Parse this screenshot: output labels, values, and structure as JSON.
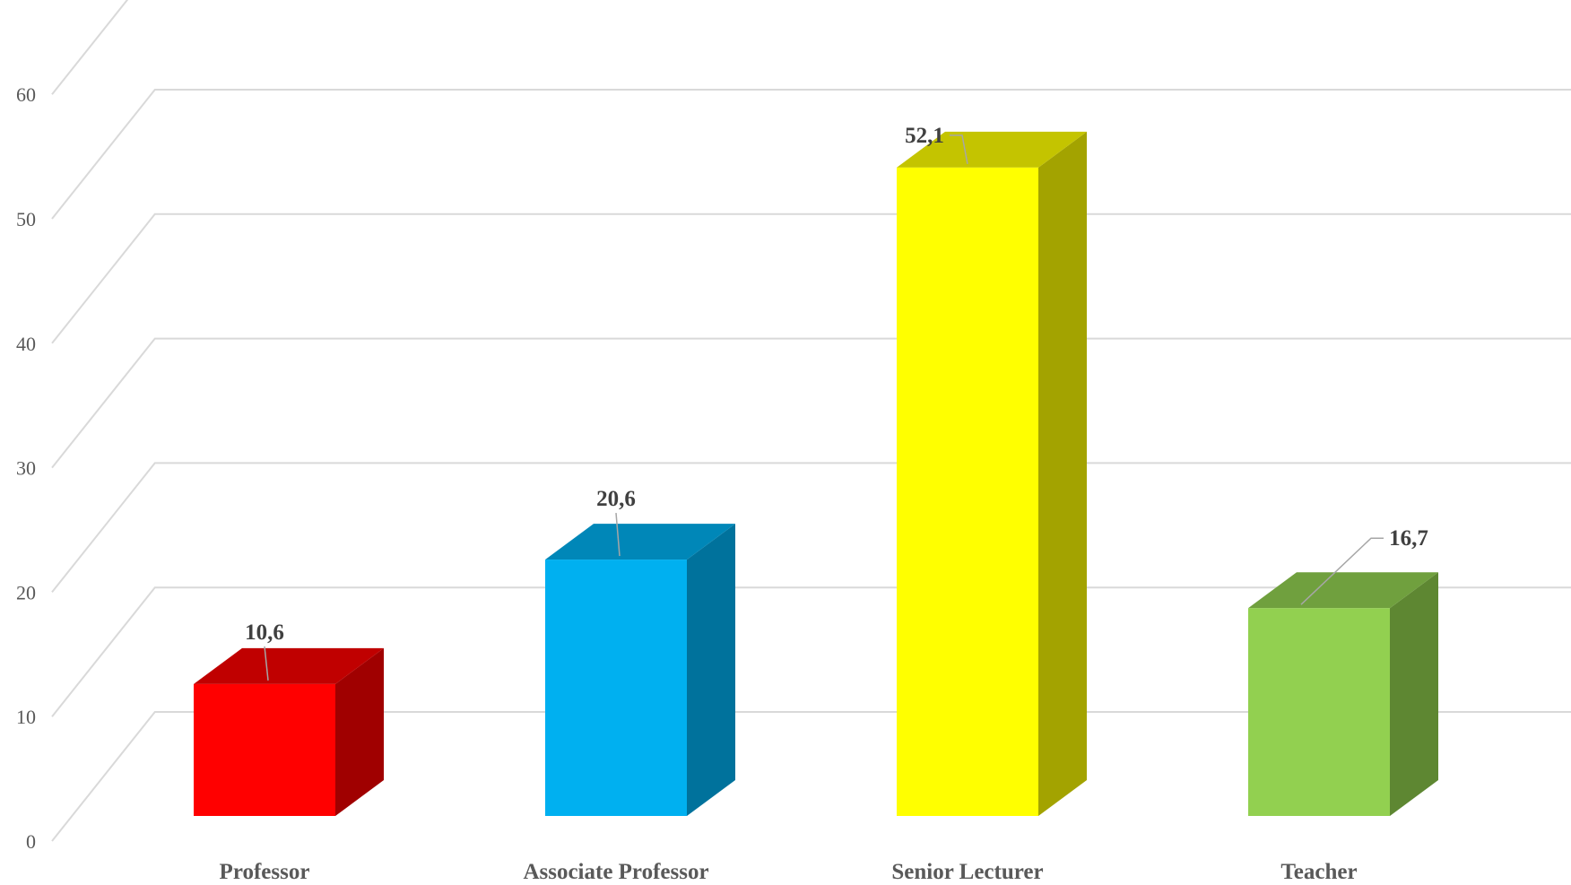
{
  "chart_data": {
    "type": "bar",
    "style": "3d-column",
    "categories": [
      "Professor",
      "Associate Professor",
      "Senior Lecturer",
      "Teacher"
    ],
    "values": [
      10.6,
      20.6,
      52.1,
      16.7
    ],
    "value_labels": [
      "10,6",
      "20,6",
      "52,1",
      "16,7"
    ],
    "bar_colors": [
      {
        "front": "#FF0000",
        "top": "#C00000",
        "side": "#A00000"
      },
      {
        "front": "#00B0F0",
        "top": "#0087B8",
        "side": "#00729C"
      },
      {
        "front": "#FFFF00",
        "top": "#C4C400",
        "side": "#A3A300"
      },
      {
        "front": "#92D050",
        "top": "#70A03E",
        "side": "#5E8732"
      }
    ],
    "ylim": [
      0,
      60
    ],
    "yticks": [
      0,
      10,
      20,
      30,
      40,
      50,
      60
    ],
    "title": "",
    "xlabel": "",
    "ylabel": "",
    "grid": true,
    "legend": "none"
  }
}
